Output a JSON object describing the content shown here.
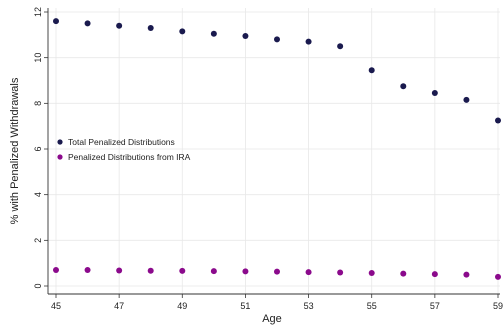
{
  "chart_data": {
    "type": "scatter",
    "xlabel": "Age",
    "ylabel": "% with Penalized Withdrawals",
    "x": [
      45,
      46,
      47,
      48,
      49,
      50,
      51,
      52,
      53,
      54,
      55,
      56,
      57,
      58,
      59
    ],
    "xlim": [
      45,
      59
    ],
    "ylim": [
      0,
      12
    ],
    "xticks": [
      "45",
      "47",
      "49",
      "51",
      "53",
      "55",
      "57",
      "59"
    ],
    "yticks": [
      "0",
      "2",
      "4",
      "6",
      "8",
      "10",
      "12"
    ],
    "grid": true,
    "legend_position": "left",
    "series": [
      {
        "name": "Total Penalized Distributions",
        "color": "#1a1a4e",
        "values": [
          11.6,
          11.5,
          11.4,
          11.3,
          11.15,
          11.05,
          10.95,
          10.8,
          10.7,
          10.5,
          9.45,
          8.75,
          8.45,
          8.15,
          7.25
        ]
      },
      {
        "name": "Penalized Distributions from IRA",
        "color": "#8b0a8c",
        "values": [
          0.7,
          0.7,
          0.68,
          0.67,
          0.66,
          0.65,
          0.64,
          0.63,
          0.61,
          0.59,
          0.57,
          0.54,
          0.52,
          0.5,
          0.4
        ]
      }
    ]
  }
}
